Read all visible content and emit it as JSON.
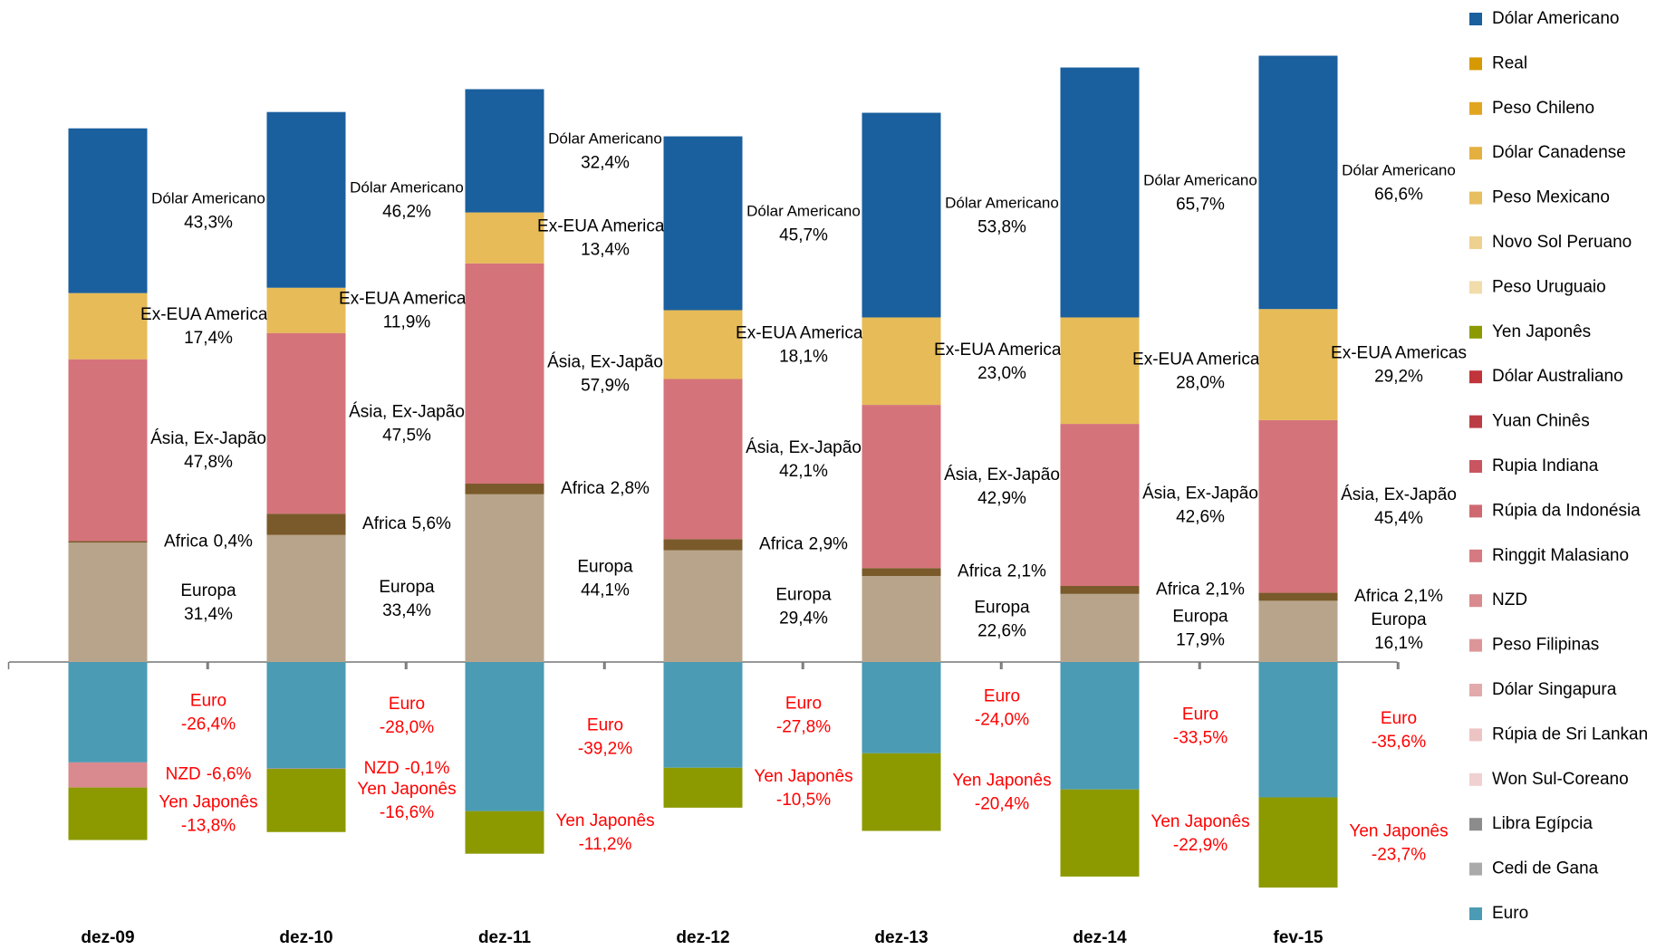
{
  "chart_data": {
    "type": "bar",
    "categories": [
      "dez-09",
      "dez-10",
      "dez-11",
      "dez-12",
      "dez-13",
      "dez-14",
      "fev-15"
    ],
    "series": [
      {
        "name": "Europa",
        "color": "#b8a48a",
        "values": [
          31.4,
          33.4,
          44.1,
          29.4,
          22.6,
          17.9,
          16.1
        ],
        "value_labels": [
          "31,4%",
          "33,4%",
          "44,1%",
          "29,4%",
          "22,6%",
          "17,9%",
          "16,1%"
        ]
      },
      {
        "name": "Africa",
        "color": "#7a5a2a",
        "values": [
          0.4,
          5.6,
          2.8,
          2.9,
          2.1,
          2.1,
          2.1
        ],
        "value_labels": [
          "0,4%",
          "5,6%",
          "2,8%",
          "2,9%",
          "2,1%",
          "2,1%",
          "2,1%"
        ]
      },
      {
        "name": "Ásia, Ex-Japão",
        "color": "#d5737a",
        "values": [
          47.8,
          47.5,
          57.9,
          42.1,
          42.9,
          42.6,
          45.4
        ],
        "value_labels": [
          "47,8%",
          "47,5%",
          "57,9%",
          "42,1%",
          "42,9%",
          "42,6%",
          "45,4%"
        ]
      },
      {
        "name": "Ex-EUA Americas",
        "color": "#e6bb58",
        "values": [
          17.4,
          11.9,
          13.4,
          18.1,
          23.0,
          28.0,
          29.2
        ],
        "value_labels": [
          "17,4%",
          "11,9%",
          "13,4%",
          "18,1%",
          "23,0%",
          "28,0%",
          "29,2%"
        ]
      },
      {
        "name": "Dólar Americano",
        "color": "#1a5f9e",
        "values": [
          43.3,
          46.2,
          32.4,
          45.7,
          53.8,
          65.7,
          66.6
        ],
        "value_labels": [
          "43,3%",
          "46,2%",
          "32,4%",
          "45,7%",
          "53,8%",
          "65,7%",
          "66,6%"
        ]
      },
      {
        "name": "Euro",
        "color": "#4b9bb4",
        "values": [
          -26.4,
          -28.0,
          -39.2,
          -27.8,
          -24.0,
          -33.5,
          -35.6
        ],
        "value_labels": [
          "-26,4%",
          "-28,0%",
          "-39,2%",
          "-27,8%",
          "-24,0%",
          "-33,5%",
          "-35,6%"
        ]
      },
      {
        "name": "NZD",
        "color": "#d98a8e",
        "values": [
          -6.6,
          -0.1,
          null,
          null,
          null,
          null,
          null
        ],
        "value_labels": [
          "-6,6%",
          "-0,1%",
          null,
          null,
          null,
          null,
          null
        ]
      },
      {
        "name": "Yen Japonês",
        "color": "#8c9a00",
        "values": [
          -13.8,
          -16.6,
          -11.2,
          -10.5,
          -20.4,
          -22.9,
          -23.7
        ],
        "value_labels": [
          "-13,8%",
          "-16,6%",
          "-11,2%",
          "-10,5%",
          "-20,4%",
          "-22,9%",
          "-23,7%"
        ]
      }
    ],
    "legend": [
      {
        "name": "Dólar Americano",
        "color": "#1a5f9e"
      },
      {
        "name": "Real",
        "color": "#d69a00"
      },
      {
        "name": "Peso Chileno",
        "color": "#e2a520"
      },
      {
        "name": "Dólar Canadense",
        "color": "#e4b040"
      },
      {
        "name": "Peso Mexicano",
        "color": "#e8bf60"
      },
      {
        "name": "Novo Sol Peruano",
        "color": "#eed18e"
      },
      {
        "name": "Peso Uruguaio",
        "color": "#f1dcaa"
      },
      {
        "name": "Yen Japonês",
        "color": "#8c9a00"
      },
      {
        "name": "Dólar Australiano",
        "color": "#c0343a"
      },
      {
        "name": "Yuan Chinês",
        "color": "#bc3c44"
      },
      {
        "name": "Rupia Indiana",
        "color": "#c85560"
      },
      {
        "name": "Rúpia da Indonésia",
        "color": "#cf6870"
      },
      {
        "name": "Ringgit Malasiano",
        "color": "#d47a80"
      },
      {
        "name": "NZD",
        "color": "#d98a8e"
      },
      {
        "name": "Peso Filipinas",
        "color": "#dd9698"
      },
      {
        "name": "Dólar Singapura",
        "color": "#e3aaab"
      },
      {
        "name": "Rúpia de Sri Lankan",
        "color": "#edc4c4"
      },
      {
        "name": "Won Sul-Coreano",
        "color": "#f0d0d0"
      },
      {
        "name": "Libra Egípcia",
        "color": "#8c8c8c"
      },
      {
        "name": "Cedi de Gana",
        "color": "#aaaaaa"
      },
      {
        "name": "Euro",
        "color": "#4b9bb4"
      }
    ]
  }
}
